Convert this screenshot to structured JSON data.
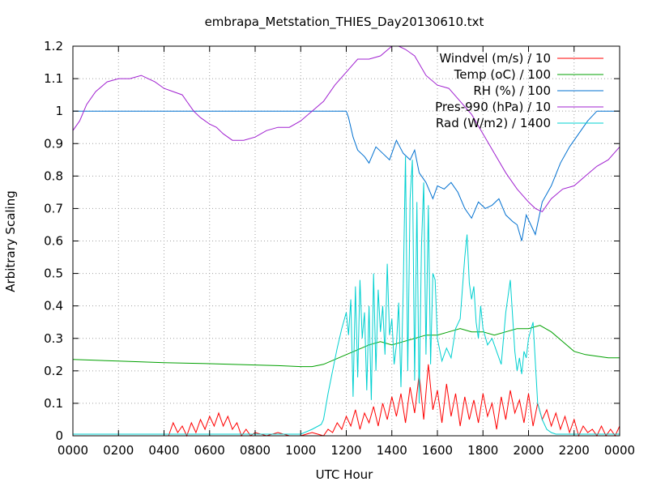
{
  "chart_data": {
    "type": "line",
    "title": "embrapa_Metstation_THIES_Day20130610.txt",
    "xlabel": "UTC Hour",
    "ylabel": "Arbitrary Scaling",
    "xlim": [
      0,
      24
    ],
    "ylim": [
      0,
      1.2
    ],
    "grid": true,
    "legend_position": "top-right",
    "x_ticks": [
      0,
      2,
      4,
      6,
      8,
      10,
      12,
      14,
      16,
      18,
      20,
      22,
      24
    ],
    "x_tick_labels": [
      "0000",
      "0200",
      "0400",
      "0600",
      "0800",
      "1000",
      "1200",
      "1400",
      "1600",
      "1800",
      "2000",
      "2200",
      "0000"
    ],
    "y_ticks": [
      0,
      0.1,
      0.2,
      0.3,
      0.4,
      0.5,
      0.6,
      0.7,
      0.8,
      0.9,
      1,
      1.1,
      1.2
    ],
    "y_tick_labels": [
      "0",
      "0.1",
      "0.2",
      "0.3",
      "0.4",
      "0.5",
      "0.6",
      "0.7",
      "0.8",
      "0.9",
      "1",
      "1.1",
      "1.2"
    ],
    "series": [
      {
        "name": "Windvel (m/s) / 10",
        "color": "#ff0000",
        "x": [
          0,
          4.2,
          4.4,
          4.6,
          4.8,
          5.0,
          5.2,
          5.4,
          5.6,
          5.8,
          6.0,
          6.2,
          6.4,
          6.6,
          6.8,
          7.0,
          7.2,
          7.4,
          7.6,
          7.8,
          8.0,
          8.5,
          9.0,
          9.5,
          10.0,
          10.5,
          11.0,
          11.2,
          11.4,
          11.6,
          11.8,
          12.0,
          12.2,
          12.4,
          12.6,
          12.8,
          13.0,
          13.2,
          13.4,
          13.6,
          13.8,
          14.0,
          14.2,
          14.4,
          14.6,
          14.8,
          15.0,
          15.2,
          15.4,
          15.6,
          15.8,
          16.0,
          16.2,
          16.4,
          16.6,
          16.8,
          17.0,
          17.2,
          17.4,
          17.6,
          17.8,
          18.0,
          18.2,
          18.4,
          18.6,
          18.8,
          19.0,
          19.2,
          19.4,
          19.6,
          19.8,
          20.0,
          20.2,
          20.4,
          20.6,
          20.8,
          21.0,
          21.2,
          21.4,
          21.6,
          21.8,
          22.0,
          22.2,
          22.4,
          22.6,
          22.8,
          23.0,
          23.2,
          23.4,
          23.6,
          23.8,
          24.0
        ],
        "y": [
          0,
          0,
          0.04,
          0.01,
          0.03,
          0.0,
          0.04,
          0.01,
          0.05,
          0.02,
          0.06,
          0.03,
          0.07,
          0.03,
          0.06,
          0.02,
          0.04,
          0.0,
          0.02,
          0.0,
          0.01,
          0.0,
          0.01,
          0.0,
          0.0,
          0.01,
          0.0,
          0.02,
          0.01,
          0.04,
          0.02,
          0.06,
          0.03,
          0.08,
          0.02,
          0.07,
          0.04,
          0.09,
          0.03,
          0.1,
          0.05,
          0.12,
          0.06,
          0.13,
          0.04,
          0.15,
          0.07,
          0.19,
          0.05,
          0.22,
          0.08,
          0.14,
          0.04,
          0.16,
          0.06,
          0.13,
          0.03,
          0.12,
          0.05,
          0.11,
          0.04,
          0.13,
          0.06,
          0.1,
          0.02,
          0.12,
          0.05,
          0.14,
          0.07,
          0.11,
          0.04,
          0.13,
          0.03,
          0.1,
          0.05,
          0.08,
          0.03,
          0.07,
          0.02,
          0.06,
          0.01,
          0.05,
          0.0,
          0.03,
          0.01,
          0.02,
          0.0,
          0.03,
          0.0,
          0.02,
          0.0,
          0.03
        ]
      },
      {
        "name": "Temp (oC) / 100",
        "color": "#00a000",
        "x": [
          0,
          2,
          4,
          6,
          8,
          9,
          10,
          10.5,
          11,
          11.5,
          12,
          12.5,
          13,
          13.5,
          14,
          14.5,
          15,
          15.5,
          16,
          16.5,
          17,
          17.5,
          18,
          18.5,
          19,
          19.5,
          20,
          20.5,
          21,
          21.5,
          22,
          22.5,
          23,
          23.5,
          24
        ],
        "y": [
          0.235,
          0.23,
          0.225,
          0.222,
          0.218,
          0.216,
          0.213,
          0.213,
          0.22,
          0.235,
          0.25,
          0.265,
          0.28,
          0.29,
          0.28,
          0.29,
          0.3,
          0.31,
          0.31,
          0.32,
          0.33,
          0.32,
          0.32,
          0.31,
          0.32,
          0.33,
          0.33,
          0.34,
          0.32,
          0.29,
          0.26,
          0.25,
          0.245,
          0.24,
          0.24
        ]
      },
      {
        "name": "RH (%) / 100",
        "color": "#0070d0",
        "x": [
          0,
          12.0,
          12.1,
          12.3,
          12.5,
          12.8,
          13.0,
          13.3,
          13.6,
          13.9,
          14.2,
          14.5,
          14.8,
          15.0,
          15.2,
          15.5,
          15.8,
          16.0,
          16.3,
          16.6,
          16.9,
          17.2,
          17.5,
          17.8,
          18.1,
          18.4,
          18.7,
          19.0,
          19.3,
          19.5,
          19.7,
          19.9,
          20.1,
          20.3,
          20.6,
          21.0,
          21.4,
          21.8,
          22.2,
          22.6,
          23.0,
          24.0
        ],
        "y": [
          1.0,
          1.0,
          0.98,
          0.92,
          0.88,
          0.86,
          0.84,
          0.89,
          0.87,
          0.85,
          0.91,
          0.87,
          0.85,
          0.88,
          0.81,
          0.78,
          0.73,
          0.77,
          0.76,
          0.78,
          0.75,
          0.7,
          0.67,
          0.72,
          0.7,
          0.71,
          0.73,
          0.68,
          0.66,
          0.65,
          0.6,
          0.68,
          0.65,
          0.62,
          0.72,
          0.77,
          0.84,
          0.89,
          0.93,
          0.97,
          1.0,
          1.0
        ]
      },
      {
        "name": "Pres-990 (hPa) / 10",
        "color": "#a020d0",
        "x": [
          0,
          0.3,
          0.6,
          1.0,
          1.5,
          2.0,
          2.5,
          3.0,
          3.3,
          3.6,
          4.0,
          4.4,
          4.8,
          5.0,
          5.3,
          5.6,
          6.0,
          6.3,
          6.6,
          7.0,
          7.5,
          8.0,
          8.5,
          9.0,
          9.5,
          10.0,
          10.5,
          11.0,
          11.5,
          12.0,
          12.5,
          13.0,
          13.5,
          14.0,
          14.3,
          14.6,
          15.0,
          15.5,
          16.0,
          16.5,
          17.0,
          17.5,
          18.0,
          18.5,
          19.0,
          19.5,
          20.0,
          20.3,
          20.6,
          21.0,
          21.5,
          22.0,
          22.5,
          23.0,
          23.5,
          24.0
        ],
        "y": [
          0.94,
          0.97,
          1.02,
          1.06,
          1.09,
          1.1,
          1.1,
          1.11,
          1.1,
          1.09,
          1.07,
          1.06,
          1.05,
          1.03,
          1.0,
          0.98,
          0.96,
          0.95,
          0.93,
          0.91,
          0.91,
          0.92,
          0.94,
          0.95,
          0.95,
          0.97,
          1.0,
          1.03,
          1.08,
          1.12,
          1.16,
          1.16,
          1.17,
          1.2,
          1.2,
          1.19,
          1.17,
          1.11,
          1.08,
          1.07,
          1.03,
          0.99,
          0.93,
          0.87,
          0.81,
          0.76,
          0.72,
          0.7,
          0.69,
          0.73,
          0.76,
          0.77,
          0.8,
          0.83,
          0.85,
          0.89
        ]
      },
      {
        "name": "Rad (W/m2) / 1400",
        "color": "#00d0d0",
        "x": [
          0,
          10.0,
          10.5,
          10.9,
          11.0,
          11.2,
          11.4,
          11.6,
          11.8,
          12.0,
          12.1,
          12.2,
          12.3,
          12.4,
          12.5,
          12.6,
          12.7,
          12.8,
          12.9,
          13.0,
          13.1,
          13.2,
          13.3,
          13.4,
          13.5,
          13.6,
          13.7,
          13.8,
          13.9,
          14.0,
          14.1,
          14.2,
          14.3,
          14.4,
          14.5,
          14.6,
          14.7,
          14.8,
          14.9,
          15.0,
          15.1,
          15.2,
          15.3,
          15.4,
          15.5,
          15.6,
          15.7,
          15.8,
          15.9,
          16.0,
          16.2,
          16.4,
          16.6,
          16.8,
          17.0,
          17.2,
          17.3,
          17.4,
          17.5,
          17.6,
          17.7,
          17.8,
          17.9,
          18.0,
          18.2,
          18.4,
          18.6,
          18.8,
          19.0,
          19.2,
          19.4,
          19.5,
          19.6,
          19.7,
          19.8,
          19.9,
          20.0,
          20.2,
          20.4,
          20.6,
          20.8,
          21.0,
          21.2,
          21.5,
          22.0,
          24.0
        ],
        "y": [
          0.005,
          0.005,
          0.02,
          0.035,
          0.05,
          0.13,
          0.2,
          0.27,
          0.33,
          0.38,
          0.31,
          0.42,
          0.12,
          0.46,
          0.18,
          0.48,
          0.3,
          0.38,
          0.14,
          0.4,
          0.11,
          0.5,
          0.2,
          0.45,
          0.32,
          0.4,
          0.25,
          0.53,
          0.31,
          0.36,
          0.22,
          0.28,
          0.41,
          0.15,
          0.45,
          0.86,
          0.2,
          0.73,
          0.85,
          0.17,
          0.72,
          0.1,
          0.58,
          0.78,
          0.25,
          0.71,
          0.22,
          0.5,
          0.48,
          0.3,
          0.23,
          0.27,
          0.24,
          0.33,
          0.36,
          0.55,
          0.62,
          0.47,
          0.42,
          0.46,
          0.35,
          0.3,
          0.4,
          0.33,
          0.28,
          0.3,
          0.26,
          0.22,
          0.38,
          0.48,
          0.26,
          0.2,
          0.24,
          0.19,
          0.26,
          0.24,
          0.3,
          0.35,
          0.1,
          0.05,
          0.02,
          0.01,
          0.005,
          0.005,
          0.005,
          0.005
        ]
      }
    ]
  }
}
